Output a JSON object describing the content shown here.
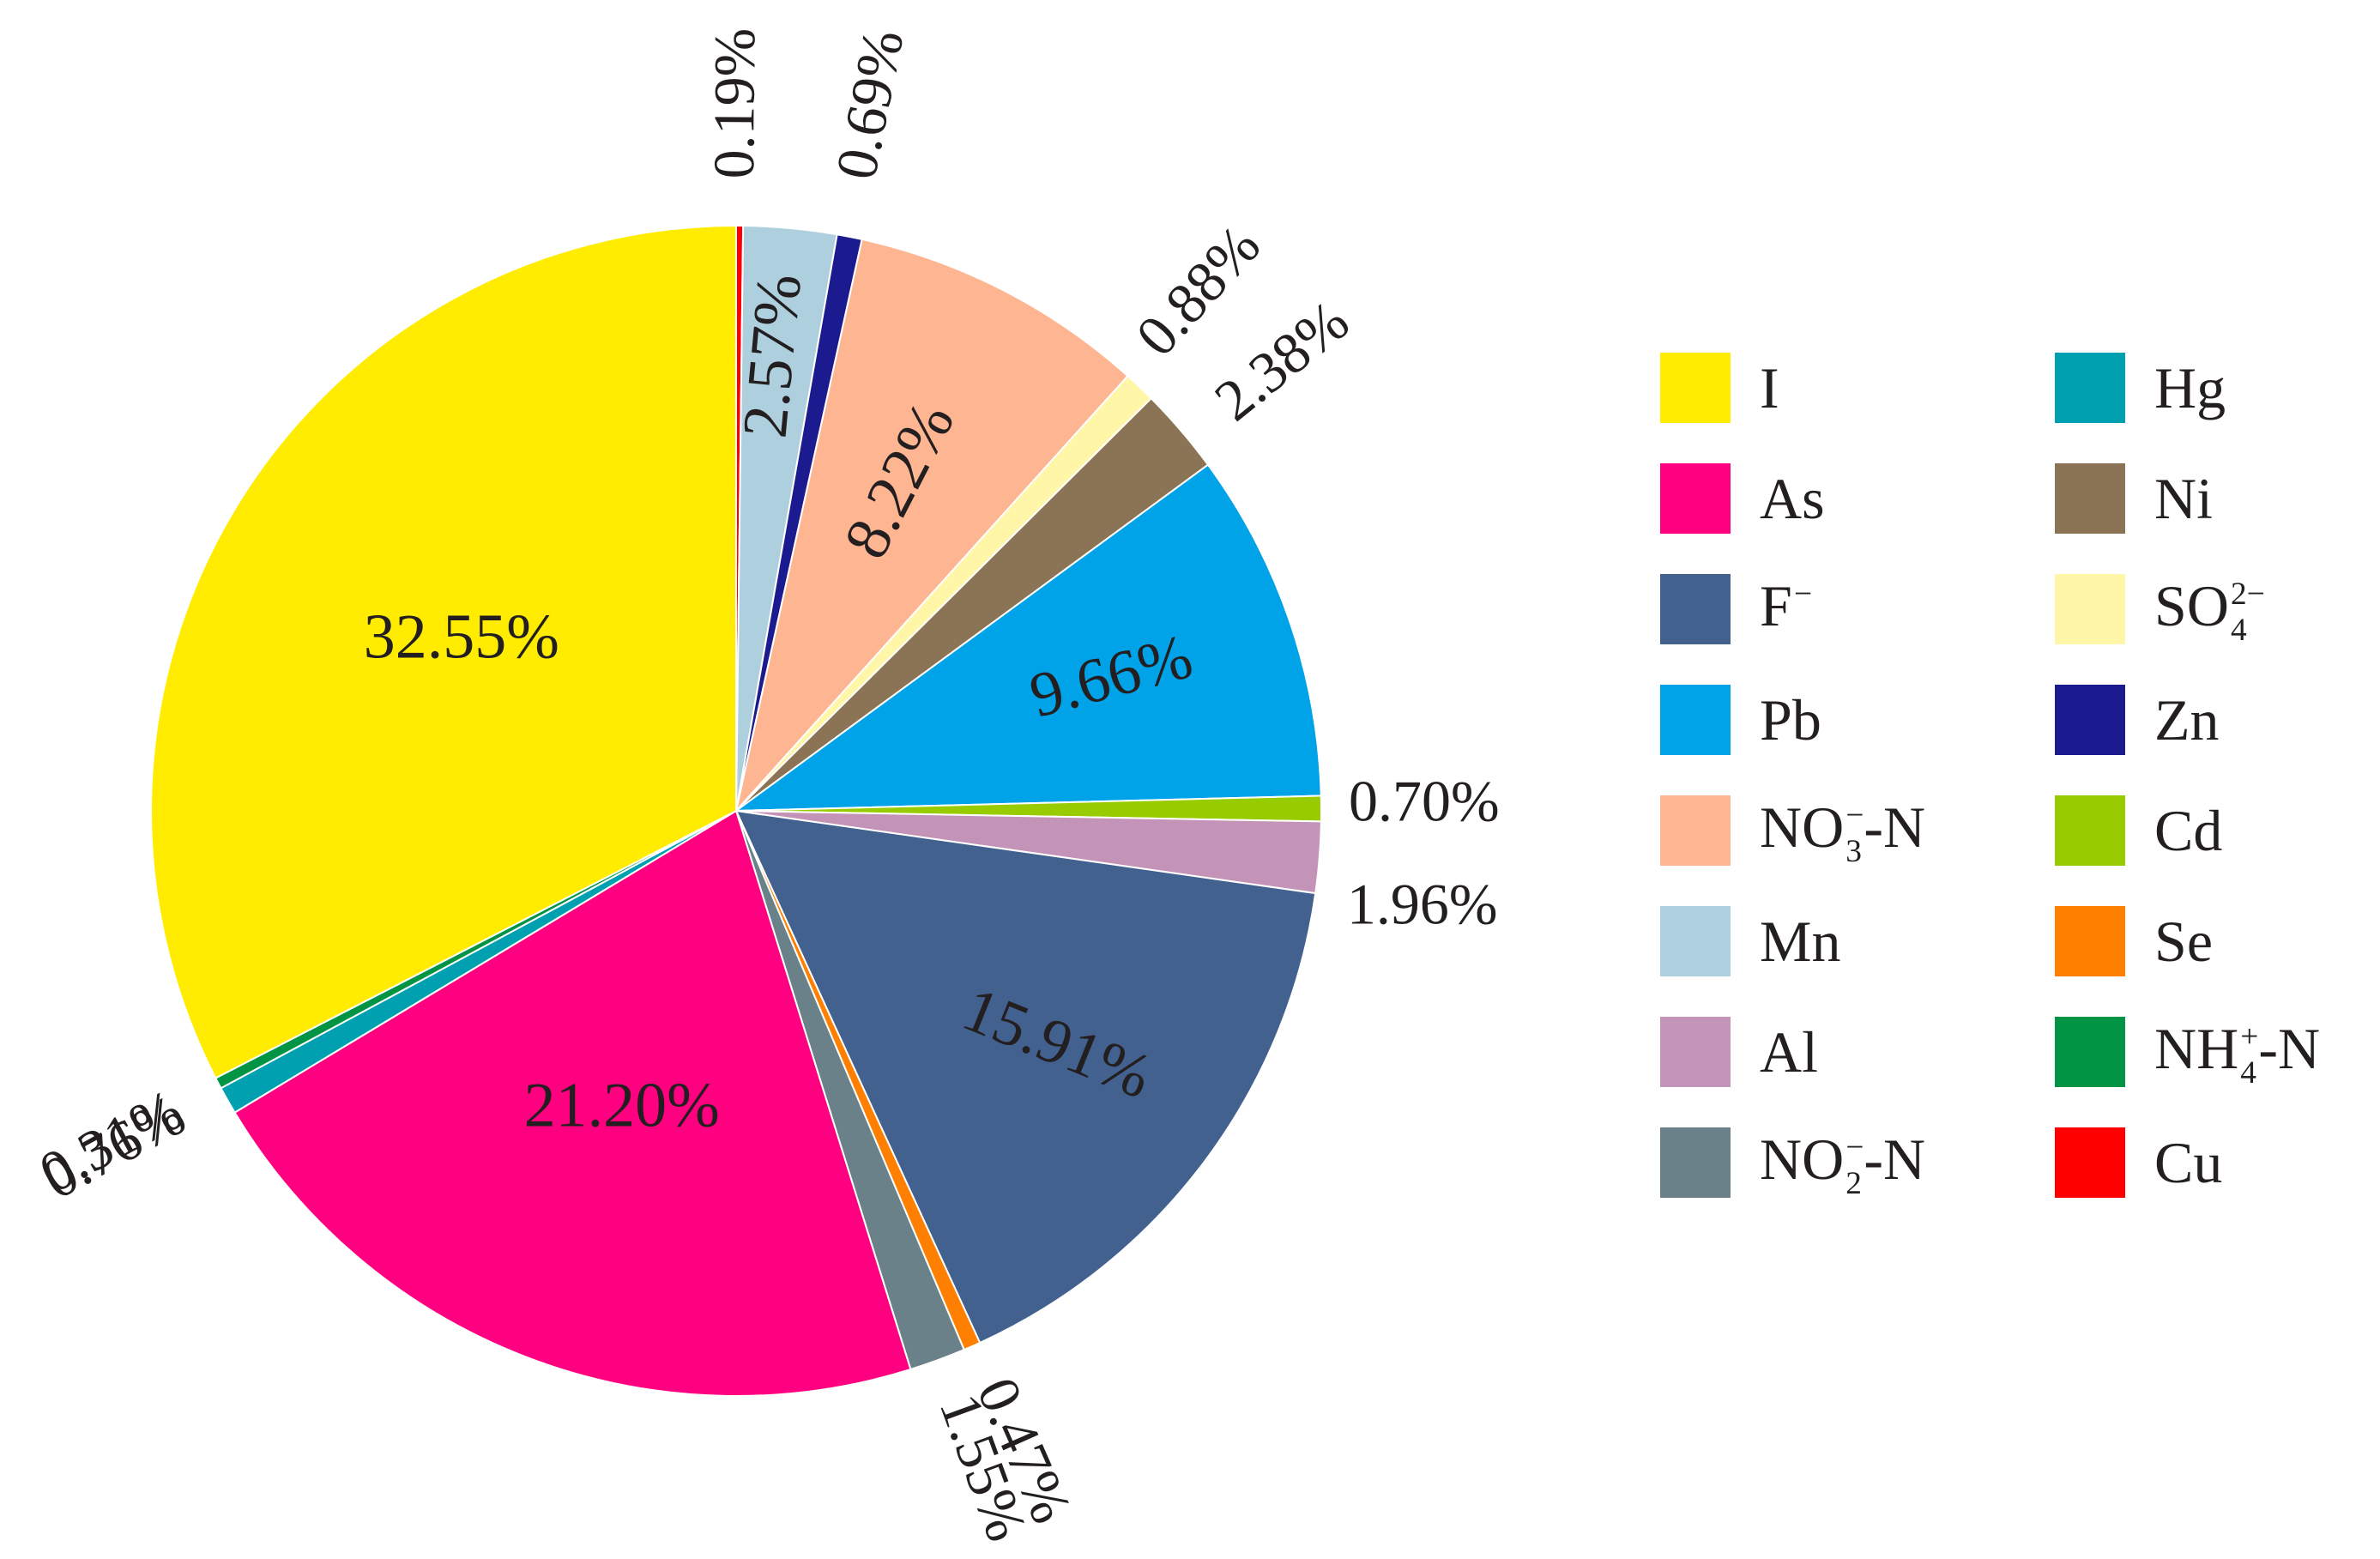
{
  "chart_data": {
    "type": "pie",
    "title": "",
    "slices": [
      {
        "name": "Cu",
        "value": 0.19,
        "label": "0.19%",
        "color": "#ff0000"
      },
      {
        "name": "Mn",
        "value": 2.57,
        "label": "2.57%",
        "color": "#aecfdd"
      },
      {
        "name": "Zn",
        "value": 0.69,
        "label": "0.69%",
        "color": "#1b1b8f"
      },
      {
        "name": "NO3⁻-N",
        "value": 8.22,
        "label": "8.22%",
        "color": "#fdb592"
      },
      {
        "name": "SO4²⁻",
        "value": 0.88,
        "label": "0.88%",
        "color": "#fff6a8"
      },
      {
        "name": "Ni",
        "value": 2.38,
        "label": "2.38%",
        "color": "#8b7355"
      },
      {
        "name": "Pb",
        "value": 9.66,
        "label": "9.66%",
        "color": "#00a2e8"
      },
      {
        "name": "Cd",
        "value": 0.7,
        "label": "0.70%",
        "color": "#99cc00"
      },
      {
        "name": "Al",
        "value": 1.96,
        "label": "1.96%",
        "color": "#c493b8"
      },
      {
        "name": "F⁻",
        "value": 15.91,
        "label": "15.91%",
        "color": "#43618f"
      },
      {
        "name": "Se",
        "value": 0.47,
        "label": "0.47%",
        "color": "#ff8000"
      },
      {
        "name": "NO2⁻-N",
        "value": 1.55,
        "label": "1.55%",
        "color": "#6b818a"
      },
      {
        "name": "As",
        "value": 21.2,
        "label": "21.20%",
        "color": "#ff0080"
      },
      {
        "name": "Hg",
        "value": 0.76,
        "label": "0.76%",
        "color": "#00a0b0"
      },
      {
        "name": "NH4⁺-N",
        "value": 0.31,
        "label": "0.31%",
        "color": "#009444"
      },
      {
        "name": "I",
        "value": 32.55,
        "label": "32.55%",
        "color": "#ffec00"
      }
    ],
    "start": "12 o'clock",
    "direction": "clockwise",
    "legend_position": "right"
  },
  "legend": {
    "left": [
      {
        "base": "I",
        "sub": "",
        "sup": "",
        "suffix": "",
        "color": "#ffec00"
      },
      {
        "base": "As",
        "sub": "",
        "sup": "",
        "suffix": "",
        "color": "#ff0080"
      },
      {
        "base": "F",
        "sub": "",
        "sup": "−",
        "suffix": "",
        "color": "#43618f"
      },
      {
        "base": "Pb",
        "sub": "",
        "sup": "",
        "suffix": "",
        "color": "#00a2e8"
      },
      {
        "base": "NO",
        "sub": "3",
        "sup": "−",
        "suffix": "-N",
        "color": "#fdb592"
      },
      {
        "base": "Mn",
        "sub": "",
        "sup": "",
        "suffix": "",
        "color": "#aecfdd"
      },
      {
        "base": "Al",
        "sub": "",
        "sup": "",
        "suffix": "",
        "color": "#c493b8"
      },
      {
        "base": "NO",
        "sub": "2",
        "sup": "−",
        "suffix": "-N",
        "color": "#6b818a"
      }
    ],
    "right": [
      {
        "base": "Hg",
        "sub": "",
        "sup": "",
        "suffix": "",
        "color": "#00a0b0"
      },
      {
        "base": "Ni",
        "sub": "",
        "sup": "",
        "suffix": "",
        "color": "#8b7355"
      },
      {
        "base": "SO",
        "sub": "4",
        "sup": "2−",
        "suffix": "",
        "color": "#fff6a8"
      },
      {
        "base": "Zn",
        "sub": "",
        "sup": "",
        "suffix": "",
        "color": "#1b1b8f"
      },
      {
        "base": "Cd",
        "sub": "",
        "sup": "",
        "suffix": "",
        "color": "#99cc00"
      },
      {
        "base": "Se",
        "sub": "",
        "sup": "",
        "suffix": "",
        "color": "#ff8000"
      },
      {
        "base": "NH",
        "sub": "4",
        "sup": "+",
        "suffix": "-N",
        "color": "#009444"
      },
      {
        "base": "Cu",
        "sub": "",
        "sup": "",
        "suffix": "",
        "color": "#ff0000"
      }
    ]
  }
}
